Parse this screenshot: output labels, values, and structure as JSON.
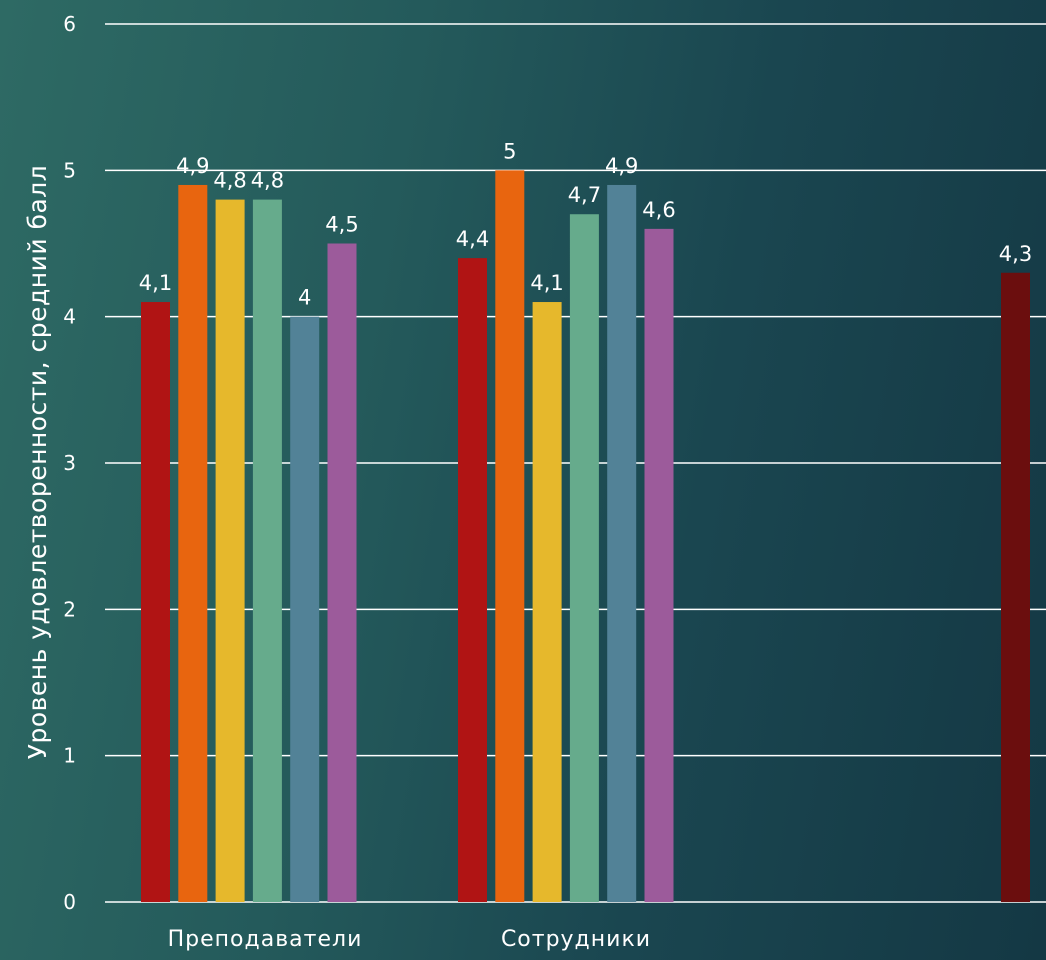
{
  "chart_data": {
    "type": "bar",
    "title": "",
    "xlabel": "",
    "ylabel": "Уровень удовлетворенности, средний балл",
    "ylim": [
      0,
      6
    ],
    "yticks": [
      "0",
      "1",
      "2",
      "3",
      "4",
      "5",
      "6"
    ],
    "grid": true,
    "legend": "none",
    "categories": [
      "Преподаватели",
      "Сотрудники",
      ""
    ],
    "series": [
      {
        "color": "#b01414",
        "values": [
          4.1,
          4.4,
          null
        ],
        "labels": [
          "4,1",
          "4,4",
          ""
        ]
      },
      {
        "color": "#e8650f",
        "values": [
          4.9,
          5,
          null
        ],
        "labels": [
          "4,9",
          "5",
          ""
        ]
      },
      {
        "color": "#e6b82c",
        "values": [
          4.8,
          4.1,
          null
        ],
        "labels": [
          "4,8",
          "4,1",
          ""
        ]
      },
      {
        "color": "#66ab8c",
        "values": [
          4.8,
          4.7,
          null
        ],
        "labels": [
          "4,8",
          "4,7",
          ""
        ]
      },
      {
        "color": "#528297",
        "values": [
          4,
          4.9,
          null
        ],
        "labels": [
          "4",
          "4,9",
          ""
        ]
      },
      {
        "color": "#9c5b9b",
        "values": [
          4.5,
          4.6,
          null
        ],
        "labels": [
          "4,5",
          "4,6",
          ""
        ]
      },
      {
        "color": "#6b0e0e",
        "values": [
          null,
          null,
          4.3
        ],
        "labels": [
          "",
          "",
          "4,3"
        ]
      }
    ]
  }
}
